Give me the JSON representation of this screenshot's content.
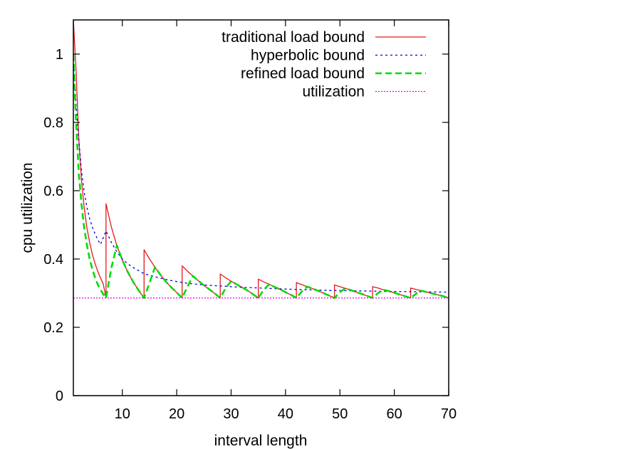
{
  "chart_data": {
    "type": "line",
    "xlabel": "interval length",
    "ylabel": "cpu utilization",
    "xlim": [
      1,
      70
    ],
    "ylim": [
      0,
      1.1
    ],
    "xticks": [
      10,
      20,
      30,
      40,
      50,
      60,
      70
    ],
    "yticks": [
      0,
      0.2,
      0.4,
      0.6,
      0.8,
      1
    ],
    "ytick_labels": [
      "0",
      "0.2",
      "0.4",
      "0.6",
      "0.8",
      "1"
    ],
    "grid": false,
    "legend_position": "top-right",
    "period": 7,
    "series": [
      {
        "name": "traditional load bound",
        "color": "#e41a1c",
        "style": "solid",
        "x": [
          1,
          1.5,
          2,
          2.5,
          3,
          3.5,
          4,
          4.5,
          5,
          5.5,
          6,
          6.5,
          7,
          7,
          8,
          9,
          10,
          11,
          12,
          13,
          14,
          14,
          15,
          16,
          17,
          18,
          19,
          20,
          21,
          21,
          22,
          23,
          24,
          25,
          26,
          27,
          28,
          28,
          29,
          30,
          31,
          32,
          33,
          34,
          35,
          35,
          36,
          37,
          38,
          39,
          40,
          41,
          42,
          42,
          43,
          44,
          45,
          46,
          47,
          48,
          49,
          49,
          50,
          51,
          52,
          53,
          54,
          55,
          56,
          56,
          57,
          58,
          59,
          60,
          61,
          62,
          63,
          63,
          64,
          65,
          66,
          67,
          68,
          69,
          70
        ],
        "y": [
          1.1,
          0.952,
          0.75,
          0.629,
          0.549,
          0.491,
          0.448,
          0.413,
          0.386,
          0.363,
          0.344,
          0.327,
          0.286,
          0.562,
          0.493,
          0.439,
          0.397,
          0.362,
          0.333,
          0.308,
          0.286,
          0.427,
          0.4,
          0.376,
          0.354,
          0.334,
          0.317,
          0.302,
          0.286,
          0.38,
          0.364,
          0.35,
          0.336,
          0.323,
          0.311,
          0.299,
          0.286,
          0.356,
          0.345,
          0.335,
          0.326,
          0.317,
          0.308,
          0.297,
          0.286,
          0.341,
          0.333,
          0.326,
          0.318,
          0.311,
          0.303,
          0.295,
          0.286,
          0.331,
          0.325,
          0.319,
          0.313,
          0.307,
          0.3,
          0.293,
          0.286,
          0.324,
          0.319,
          0.314,
          0.309,
          0.303,
          0.298,
          0.292,
          0.286,
          0.319,
          0.315,
          0.31,
          0.306,
          0.301,
          0.296,
          0.291,
          0.286,
          0.315,
          0.311,
          0.307,
          0.303,
          0.299,
          0.295,
          0.291,
          0.286
        ]
      },
      {
        "name": "hyperbolic bound",
        "color": "#0000dd",
        "style": "dotted",
        "x": [
          1,
          1.5,
          2,
          2.5,
          3,
          3.5,
          4,
          4.5,
          5,
          5.5,
          6,
          7,
          8,
          9,
          10,
          11,
          12,
          13,
          14,
          16,
          18,
          20,
          22,
          25,
          28,
          31,
          34,
          37,
          40,
          44,
          48,
          52,
          56,
          60,
          65,
          70
        ],
        "y": [
          1.0,
          0.85,
          0.75,
          0.657,
          0.595,
          0.551,
          0.518,
          0.493,
          0.473,
          0.456,
          0.443,
          0.482,
          0.448,
          0.421,
          0.4,
          0.386,
          0.375,
          0.366,
          0.357,
          0.348,
          0.34,
          0.334,
          0.329,
          0.324,
          0.321,
          0.318,
          0.316,
          0.314,
          0.312,
          0.31,
          0.308,
          0.307,
          0.306,
          0.305,
          0.304,
          0.303
        ]
      },
      {
        "name": "refined load bound",
        "color": "#00dd00",
        "style": "dashed",
        "x": [
          1,
          1.5,
          2,
          2.5,
          3,
          3.5,
          4,
          4.5,
          5,
          5.5,
          6,
          6.5,
          7,
          8,
          9,
          10,
          11,
          12,
          13,
          14,
          15,
          16,
          17,
          18,
          19,
          20,
          21,
          22,
          23,
          24,
          25,
          26,
          27,
          28,
          29,
          30,
          31,
          32,
          33,
          34,
          35,
          36,
          37,
          38,
          39,
          40,
          41,
          42,
          43,
          44,
          45,
          46,
          47,
          48,
          49,
          50,
          51,
          52,
          53,
          54,
          55,
          56,
          57,
          58,
          59,
          60,
          61,
          62,
          63,
          64,
          65,
          66,
          67,
          68,
          69,
          70
        ],
        "y": [
          1.0,
          0.8,
          0.65,
          0.56,
          0.49,
          0.44,
          0.4,
          0.37,
          0.345,
          0.325,
          0.31,
          0.297,
          0.286,
          0.375,
          0.44,
          0.397,
          0.362,
          0.333,
          0.308,
          0.286,
          0.33,
          0.376,
          0.354,
          0.334,
          0.317,
          0.302,
          0.286,
          0.32,
          0.35,
          0.336,
          0.323,
          0.311,
          0.299,
          0.286,
          0.315,
          0.335,
          0.326,
          0.317,
          0.308,
          0.297,
          0.286,
          0.31,
          0.326,
          0.318,
          0.311,
          0.303,
          0.295,
          0.286,
          0.305,
          0.319,
          0.313,
          0.307,
          0.3,
          0.293,
          0.286,
          0.303,
          0.314,
          0.309,
          0.303,
          0.298,
          0.292,
          0.286,
          0.3,
          0.31,
          0.306,
          0.301,
          0.296,
          0.291,
          0.286,
          0.298,
          0.307,
          0.303,
          0.299,
          0.295,
          0.291,
          0.286
        ]
      },
      {
        "name": "utilization",
        "color": "#ee00ee",
        "style": "finedot",
        "x": [
          1,
          70
        ],
        "y": [
          0.286,
          0.286
        ]
      }
    ]
  }
}
